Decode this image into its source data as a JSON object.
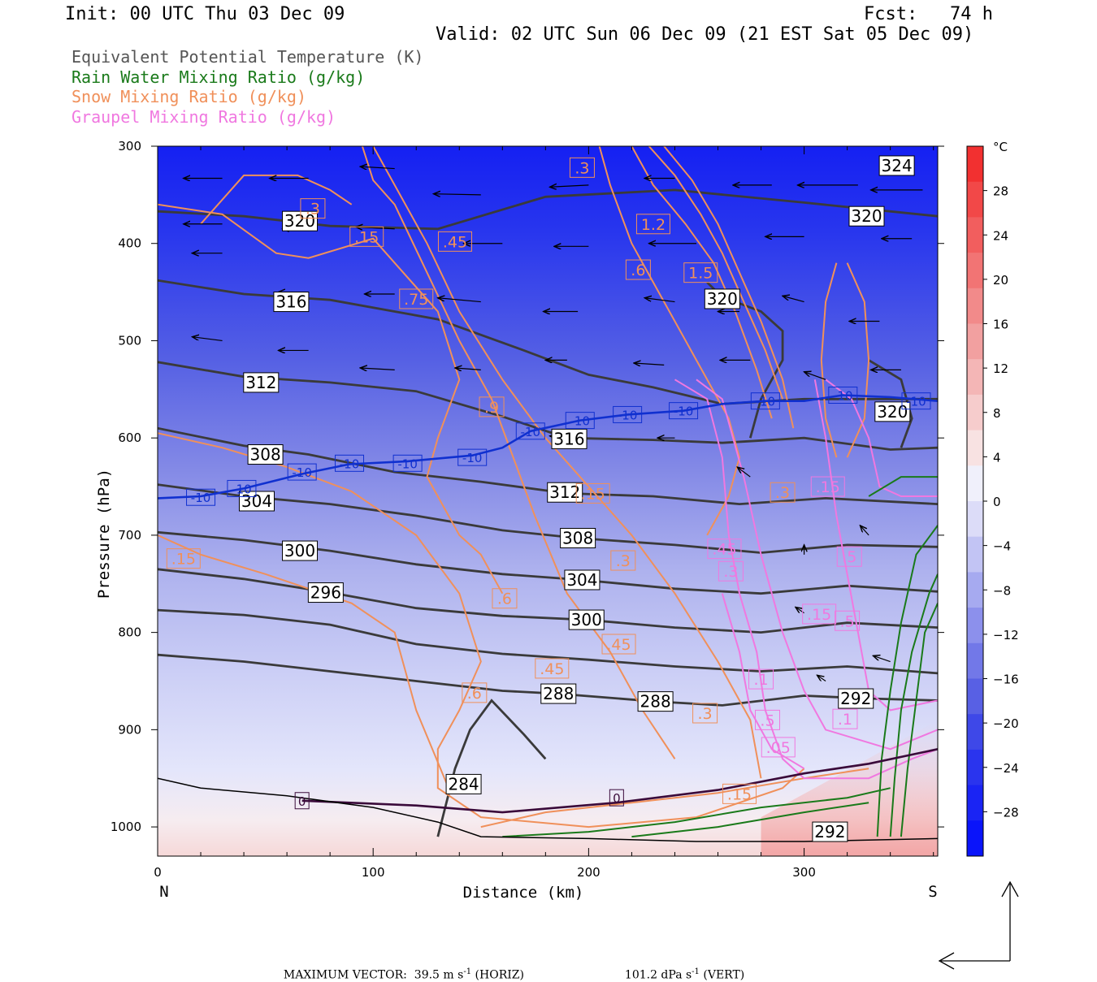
{
  "header": {
    "init": "Init: 00 UTC Thu 03 Dec 09",
    "fcst": "Fcst:   74 h",
    "valid": "Valid: 02 UTC Sun 06 Dec 09 (21 EST Sat 05 Dec 09)"
  },
  "legend": [
    {
      "label": "Equivalent Potential Temperature (K)",
      "color": "#555555"
    },
    {
      "label": "Rain Water Mixing Ratio (g/kg)",
      "color": "#1a7a1a"
    },
    {
      "label": "Snow Mixing Ratio (g/kg)",
      "color": "#f0905a"
    },
    {
      "label": "Graupel Mixing Ratio (g/kg)",
      "color": "#f078e0"
    }
  ],
  "colors": {
    "theta_e": "#3a3a3a",
    "rain": "#1a7a1a",
    "snow": "#f0905a",
    "graupel": "#f078e0",
    "isotherm_minus10": "#1030d0",
    "isotherm_zero": "#3a0a3a"
  },
  "chart_data": {
    "type": "heatmap",
    "xlabel": "Distance (km)",
    "ylabel": "Pressure (hPa)",
    "xlim": [
      0,
      362
    ],
    "ylim": [
      1030,
      300
    ],
    "x_ticks": [
      "0",
      "100",
      "200",
      "300"
    ],
    "y_ticks": [
      "300",
      "400",
      "500",
      "600",
      "700",
      "800",
      "900",
      "1000"
    ],
    "x_ends": {
      "left": "N",
      "right": "S"
    },
    "colorbar": {
      "unit": "°C",
      "labels": [
        "28",
        "24",
        "20",
        "16",
        "12",
        "8",
        "4",
        "0",
        "-4",
        "-8",
        "-12",
        "-16",
        "-20",
        "-24",
        "-28"
      ],
      "range": [
        -32,
        32
      ]
    },
    "theta_e_labels": [
      {
        "text": "324",
        "x": 343,
        "p": 320
      },
      {
        "text": "320",
        "x": 329,
        "p": 372
      },
      {
        "text": "320",
        "x": 66,
        "p": 377
      },
      {
        "text": "316",
        "x": 62,
        "p": 460
      },
      {
        "text": "312",
        "x": 48,
        "p": 543
      },
      {
        "text": "308",
        "x": 50,
        "p": 617
      },
      {
        "text": "304",
        "x": 46,
        "p": 665
      },
      {
        "text": "300",
        "x": 66,
        "p": 716
      },
      {
        "text": "296",
        "x": 78,
        "p": 759
      },
      {
        "text": "316",
        "x": 191,
        "p": 601
      },
      {
        "text": "312",
        "x": 189,
        "p": 656
      },
      {
        "text": "308",
        "x": 195,
        "p": 703
      },
      {
        "text": "304",
        "x": 197,
        "p": 746
      },
      {
        "text": "300",
        "x": 199,
        "p": 787
      },
      {
        "text": "288",
        "x": 186,
        "p": 863
      },
      {
        "text": "288",
        "x": 231,
        "p": 871
      },
      {
        "text": "284",
        "x": 142,
        "p": 956
      },
      {
        "text": "292",
        "x": 324,
        "p": 868
      },
      {
        "text": "292",
        "x": 312,
        "p": 1005
      },
      {
        "text": "320",
        "x": 341,
        "p": 573
      },
      {
        "text": "320",
        "x": 262,
        "p": 457
      }
    ],
    "isotherm_labels": [
      {
        "text": "-10",
        "x": 20,
        "p": 661
      },
      {
        "text": "-10",
        "x": 39,
        "p": 652
      },
      {
        "text": "-10",
        "x": 67,
        "p": 635
      },
      {
        "text": "-10",
        "x": 89,
        "p": 626
      },
      {
        "text": "-10",
        "x": 116,
        "p": 626
      },
      {
        "text": "-10",
        "x": 146,
        "p": 620
      },
      {
        "text": "-10",
        "x": 173,
        "p": 593
      },
      {
        "text": "-10",
        "x": 196,
        "p": 582
      },
      {
        "text": "-10",
        "x": 218,
        "p": 576
      },
      {
        "text": "-10",
        "x": 244,
        "p": 572
      },
      {
        "text": "-10",
        "x": 282,
        "p": 562
      },
      {
        "text": "-10",
        "x": 318,
        "p": 556
      },
      {
        "text": "-10",
        "x": 352,
        "p": 562
      },
      {
        "text": "0",
        "x": 67,
        "p": 973
      },
      {
        "text": "0",
        "x": 213,
        "p": 970
      }
    ],
    "snow_labels": [
      {
        "text": ".3",
        "x": 197,
        "p": 322
      },
      {
        "text": ".3",
        "x": 72,
        "p": 364
      },
      {
        "text": ".15",
        "x": 97,
        "p": 393
      },
      {
        "text": ".45",
        "x": 138,
        "p": 398
      },
      {
        "text": "1.2",
        "x": 230,
        "p": 380
      },
      {
        "text": ".6",
        "x": 223,
        "p": 427
      },
      {
        "text": "1.5",
        "x": 252,
        "p": 430
      },
      {
        "text": ".75",
        "x": 120,
        "p": 457
      },
      {
        "text": ".9",
        "x": 155,
        "p": 568
      },
      {
        "text": ".15",
        "x": 202,
        "p": 657
      },
      {
        "text": ".3",
        "x": 290,
        "p": 656
      },
      {
        "text": ".15",
        "x": 12,
        "p": 724
      },
      {
        "text": ".3",
        "x": 216,
        "p": 726
      },
      {
        "text": ".6",
        "x": 161,
        "p": 765
      },
      {
        "text": ".45",
        "x": 214,
        "p": 812
      },
      {
        "text": ".45",
        "x": 183,
        "p": 837
      },
      {
        "text": ".6",
        "x": 147,
        "p": 862
      },
      {
        "text": ".3",
        "x": 254,
        "p": 883
      },
      {
        "text": ".15",
        "x": 270,
        "p": 966
      }
    ],
    "graupel_labels": [
      {
        "text": ".45",
        "x": 263,
        "p": 714
      },
      {
        "text": ".3",
        "x": 266,
        "p": 737
      },
      {
        "text": ".5",
        "x": 321,
        "p": 722
      },
      {
        "text": ".15",
        "x": 307,
        "p": 781
      },
      {
        "text": ".5",
        "x": 320,
        "p": 788
      },
      {
        "text": ".15",
        "x": 311,
        "p": 650
      },
      {
        "text": ".1",
        "x": 280,
        "p": 848
      },
      {
        "text": ".5",
        "x": 283,
        "p": 890
      },
      {
        "text": ".05",
        "x": 288,
        "p": 918
      },
      {
        "text": ".1",
        "x": 319,
        "p": 889
      }
    ],
    "max_vector": {
      "text": "MAXIMUM VECTOR:",
      "horiz": "39.5 m s",
      "horiz_unit": "(HORIZ)",
      "vert": "101.2 dPa s",
      "vert_unit": "(VERT)",
      "exp": "-1"
    }
  }
}
